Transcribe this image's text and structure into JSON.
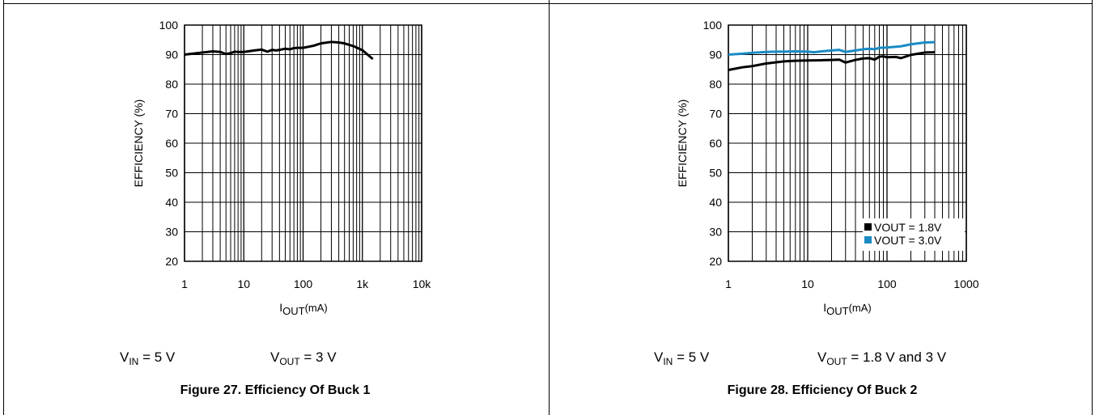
{
  "charts": {
    "buck1": {
      "caption": "Figure 27. Efficiency Of Buck 1",
      "conditions": {
        "vin_symbol": "V",
        "vin_sub": "IN",
        "vin_value": " = 5 V",
        "vout_symbol": "V",
        "vout_sub": "OUT",
        "vout_value": " = 3 V"
      }
    },
    "buck2": {
      "caption": "Figure 28. Efficiency Of Buck 2",
      "conditions": {
        "vin_symbol": "V",
        "vin_sub": "IN",
        "vin_value": " = 5 V",
        "vout_symbol": "V",
        "vout_sub": "OUT",
        "vout_value": " = 1.8 V and 3 V"
      }
    }
  },
  "chart_data": [
    {
      "type": "line",
      "ylabel": "EFFICIENCY (%)",
      "xlabel": {
        "main": "I",
        "sub": "OUT",
        "rest": "(mA)"
      },
      "xscale": "log",
      "xlim": [
        1,
        10000
      ],
      "ylim": [
        20,
        100
      ],
      "xticks": [
        1,
        10,
        100,
        1000,
        10000
      ],
      "xtick_labels": [
        "1",
        "10",
        "100",
        "1k",
        "10k"
      ],
      "yticks": [
        20,
        30,
        40,
        50,
        60,
        70,
        80,
        90,
        100
      ],
      "ytick_labels": [
        "20",
        "30",
        "40",
        "50",
        "60",
        "70",
        "80",
        "90",
        "100"
      ],
      "grid": true,
      "legend": null,
      "series": [
        {
          "color": "#000000",
          "x": [
            1,
            1.5,
            2,
            3,
            4,
            5,
            6,
            7,
            8,
            10,
            15,
            20,
            25,
            30,
            35,
            40,
            50,
            60,
            70,
            80,
            100,
            150,
            200,
            300,
            400,
            500,
            700,
            1000,
            1500
          ],
          "y": [
            90.0,
            90.4,
            90.7,
            91.1,
            90.9,
            90.2,
            90.5,
            91.0,
            90.9,
            90.9,
            91.4,
            91.7,
            91.0,
            91.6,
            91.4,
            91.6,
            92.0,
            91.8,
            92.2,
            92.3,
            92.3,
            93.0,
            93.8,
            94.3,
            94.1,
            93.8,
            92.9,
            91.5,
            88.5
          ]
        }
      ]
    },
    {
      "type": "line",
      "ylabel": "EFFICIENCY (%)",
      "xlabel": {
        "main": "I",
        "sub": "OUT",
        "rest": "(mA)"
      },
      "xscale": "log",
      "xlim": [
        1,
        1000
      ],
      "ylim": [
        20,
        100
      ],
      "xticks": [
        1,
        10,
        100,
        1000
      ],
      "xtick_labels": [
        "1",
        "10",
        "100",
        "1000"
      ],
      "yticks": [
        20,
        30,
        40,
        50,
        60,
        70,
        80,
        90,
        100
      ],
      "ytick_labels": [
        "20",
        "30",
        "40",
        "50",
        "60",
        "70",
        "80",
        "90",
        "100"
      ],
      "grid": true,
      "legend": "bottom-right",
      "series": [
        {
          "name": "VOUT = 1.8V",
          "color": "#000000",
          "x": [
            1,
            1.5,
            2,
            3,
            4,
            5,
            7,
            10,
            15,
            20,
            25,
            30,
            40,
            50,
            60,
            70,
            80,
            90,
            100,
            130,
            150,
            200,
            300,
            400
          ],
          "y": [
            84.8,
            85.7,
            86.1,
            87.0,
            87.4,
            87.7,
            87.9,
            88.0,
            88.1,
            88.2,
            88.3,
            87.3,
            88.2,
            88.7,
            88.8,
            88.3,
            89.3,
            89.4,
            89.1,
            89.2,
            88.8,
            89.9,
            90.7,
            90.8
          ]
        },
        {
          "name": "VOUT = 3.0V",
          "color": "#1a8bc4",
          "x": [
            1,
            1.5,
            2,
            3,
            4,
            5,
            7,
            10,
            12,
            15,
            20,
            25,
            30,
            40,
            50,
            60,
            70,
            80,
            100,
            150,
            200,
            300,
            400
          ],
          "y": [
            90.0,
            90.3,
            90.6,
            90.9,
            91.0,
            91.0,
            91.1,
            91.0,
            90.8,
            91.1,
            91.4,
            91.6,
            90.9,
            91.4,
            91.8,
            92.0,
            91.8,
            92.3,
            92.4,
            92.8,
            93.5,
            94.1,
            94.2
          ]
        }
      ]
    }
  ]
}
